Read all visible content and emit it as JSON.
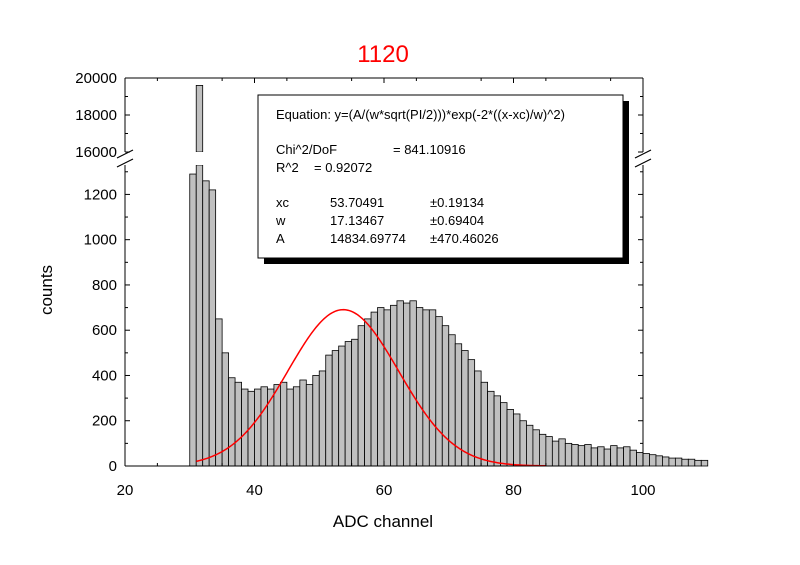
{
  "chart_data": {
    "type": "bar",
    "title": "1120",
    "xlabel": "ADC channel",
    "ylabel": "counts",
    "xlim": [
      20,
      100
    ],
    "ylim_lower": [
      0,
      1330
    ],
    "ylim_upper": [
      16000,
      20000
    ],
    "axis_break": "y between 1330 and 16000",
    "x_ticks": [
      "20",
      "40",
      "60",
      "80",
      "100"
    ],
    "y_ticks_lower": [
      "0",
      "200",
      "400",
      "600",
      "800",
      "1000",
      "1200"
    ],
    "y_ticks_upper": [
      "16000",
      "18000",
      "20000"
    ],
    "bar_color": "#c0c0c0",
    "fit_color": "#ff0000",
    "title_color": "#ff0000",
    "bins": {
      "start": 30,
      "width": 1,
      "values": [
        1290,
        19600,
        1260,
        1220,
        650,
        500,
        390,
        370,
        340,
        330,
        340,
        350,
        340,
        360,
        370,
        340,
        350,
        380,
        360,
        400,
        420,
        490,
        510,
        530,
        550,
        560,
        620,
        650,
        680,
        700,
        690,
        710,
        730,
        720,
        730,
        700,
        690,
        690,
        660,
        620,
        580,
        540,
        510,
        470,
        420,
        370,
        330,
        310,
        280,
        250,
        230,
        200,
        180,
        160,
        140,
        130,
        110,
        120,
        100,
        95,
        90,
        95,
        80,
        85,
        75,
        90,
        80,
        85,
        70,
        60,
        55,
        50,
        45,
        40,
        35,
        35,
        30,
        30,
        25,
        25
      ]
    },
    "fit_curve": {
      "equation_form": "gauss",
      "xc": 53.70491,
      "w": 17.13467,
      "A": 14834.69774,
      "x_range": [
        31,
        85
      ]
    },
    "fit_box": {
      "equation": "Equation: y=(A/(w*sqrt(PI/2)))*exp(-2*((x-xc)/w)^2)",
      "chi_label": "Chi^2/DoF",
      "chi_value": "= 841.10916",
      "r2_label": "R^2",
      "r2_value": "=  0.92072",
      "params": [
        {
          "name": "xc",
          "value": "53.70491",
          "error": "±0.19134"
        },
        {
          "name": "w",
          "value": "17.13467",
          "error": "±0.69404"
        },
        {
          "name": "A",
          "value": "14834.69774",
          "error": "±470.46026"
        }
      ]
    }
  }
}
